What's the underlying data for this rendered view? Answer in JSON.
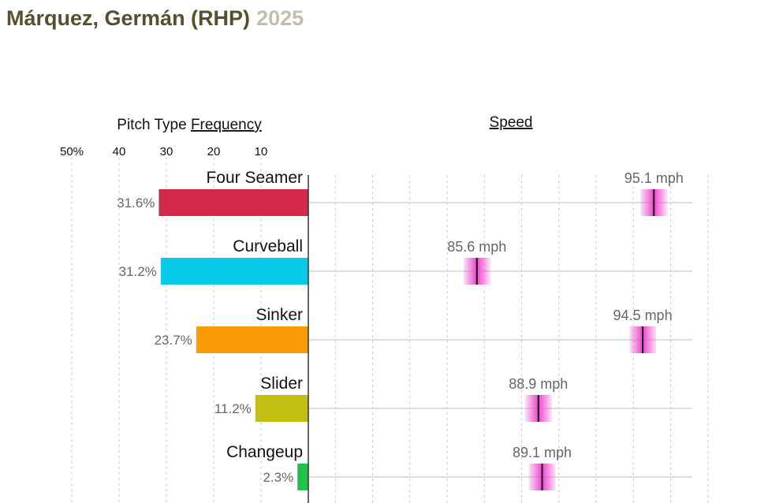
{
  "header": {
    "player": "Márquez, Germán (RHP)",
    "year": "2025"
  },
  "colors": {
    "title": "#56502f",
    "year": "#c4bfac",
    "speed_marker": "#ee44cc"
  },
  "chart_data": {
    "type": "bar",
    "frequency_title_prefix": "Pitch Type ",
    "frequency_title_link": "Frequency",
    "speed_title": "Speed",
    "frequency_axis": {
      "ticks": [
        {
          "value": 50,
          "label": "50%"
        },
        {
          "value": 40,
          "label": "40"
        },
        {
          "value": 30,
          "label": "30"
        },
        {
          "value": 20,
          "label": "20"
        },
        {
          "value": 10,
          "label": "10"
        }
      ],
      "range": [
        0,
        50
      ]
    },
    "speed_axis": {
      "range": [
        76,
        100
      ],
      "gridlines": [
        78,
        80,
        82,
        84,
        86,
        88,
        90,
        92,
        94,
        96,
        98
      ]
    },
    "pitches": [
      {
        "name": "Four Seamer",
        "frequency": 31.6,
        "frequency_label": "31.6%",
        "speed": 95.1,
        "speed_label": "95.1 mph",
        "color": "#d42a4a"
      },
      {
        "name": "Curveball",
        "frequency": 31.2,
        "frequency_label": "31.2%",
        "speed": 85.6,
        "speed_label": "85.6 mph",
        "color": "#08cbe8"
      },
      {
        "name": "Sinker",
        "frequency": 23.7,
        "frequency_label": "23.7%",
        "speed": 94.5,
        "speed_label": "94.5 mph",
        "color": "#fb9a05"
      },
      {
        "name": "Slider",
        "frequency": 11.2,
        "frequency_label": "11.2%",
        "speed": 88.9,
        "speed_label": "88.9 mph",
        "color": "#c3bf12"
      },
      {
        "name": "Changeup",
        "frequency": 2.3,
        "frequency_label": "2.3%",
        "speed": 89.1,
        "speed_label": "89.1 mph",
        "color": "#22c24a"
      }
    ]
  }
}
